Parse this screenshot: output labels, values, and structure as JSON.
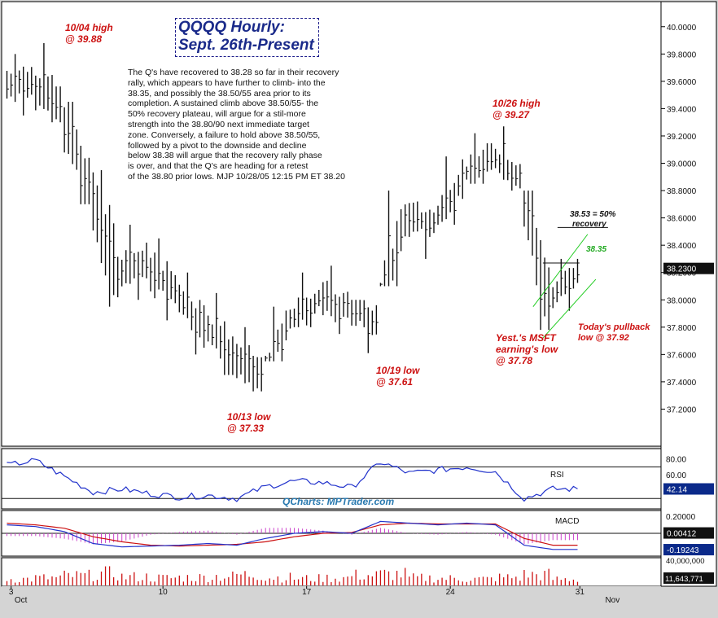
{
  "chart_data": [
    {
      "type": "bar",
      "subtype": "ohlc-hourly",
      "title": "QQQQ Hourly:",
      "subtitle": "Sept. 26th-Present",
      "ylim": [
        37.0,
        40.1
      ],
      "ytick_labels": [
        "40.0000",
        "39.8000",
        "39.6000",
        "39.4000",
        "39.2000",
        "39.0000",
        "38.8000",
        "38.6000",
        "38.4000",
        "38.2000",
        "38.0000",
        "37.8000",
        "37.6000",
        "37.4000",
        "37.2000"
      ],
      "xtick_labels": [
        "3",
        "Oct",
        "10",
        "17",
        "24",
        "31",
        "Nov"
      ],
      "last_price_label": "38.2300",
      "series": [
        {
          "x": [
            "10/03",
            "10/04",
            "10/05",
            "10/06",
            "10/07",
            "10/10",
            "10/11",
            "10/12",
            "10/13",
            "10/14",
            "10/17",
            "10/18",
            "10/19",
            "10/20",
            "10/21",
            "10/24",
            "10/25",
            "10/26",
            "10/27",
            "10/28"
          ],
          "high": [
            39.8,
            39.88,
            39.45,
            38.95,
            38.55,
            38.45,
            38.2,
            38.05,
            37.8,
            37.95,
            38.2,
            38.25,
            38.0,
            38.8,
            38.72,
            39.05,
            39.22,
            39.27,
            38.8,
            38.3
          ],
          "low": [
            39.35,
            39.3,
            38.7,
            37.95,
            38.0,
            37.85,
            37.6,
            37.45,
            37.33,
            37.55,
            37.8,
            37.75,
            37.61,
            38.1,
            38.3,
            38.55,
            38.85,
            38.8,
            37.78,
            37.92
          ],
          "close": [
            39.6,
            39.4,
            38.8,
            38.2,
            38.25,
            38.05,
            37.8,
            37.6,
            37.45,
            37.85,
            38.0,
            37.95,
            37.85,
            38.6,
            38.55,
            38.9,
            39.05,
            38.9,
            37.95,
            38.23
          ]
        }
      ],
      "grid": false,
      "legend": "none"
    },
    {
      "type": "line",
      "name": "RSI",
      "ytick_labels": [
        "80.00",
        "60.00",
        "40.00"
      ],
      "last_value_label": "42.14",
      "series": [
        {
          "name": "RSI",
          "x": [
            "10/03",
            "10/04",
            "10/05",
            "10/06",
            "10/07",
            "10/10",
            "10/11",
            "10/12",
            "10/13",
            "10/14",
            "10/17",
            "10/18",
            "10/19",
            "10/20",
            "10/21",
            "10/24",
            "10/25",
            "10/26",
            "10/27",
            "10/28"
          ],
          "values": [
            72,
            78,
            58,
            38,
            42,
            36,
            32,
            34,
            30,
            45,
            52,
            50,
            44,
            76,
            62,
            66,
            70,
            64,
            30,
            42
          ]
        }
      ]
    },
    {
      "type": "line",
      "name": "MACD",
      "ytick_labels": [
        "0.20000",
        "0.00412",
        "-0.19243"
      ],
      "series": [
        {
          "name": "MACD",
          "x": [
            "10/03",
            "10/04",
            "10/05",
            "10/06",
            "10/07",
            "10/10",
            "10/11",
            "10/12",
            "10/13",
            "10/14",
            "10/17",
            "10/18",
            "10/19",
            "10/20",
            "10/21",
            "10/24",
            "10/25",
            "10/26",
            "10/27",
            "10/28"
          ],
          "values": [
            0.1,
            0.08,
            0.02,
            -0.12,
            -0.16,
            -0.15,
            -0.14,
            -0.12,
            -0.14,
            -0.06,
            0.0,
            0.02,
            0.0,
            0.14,
            0.12,
            0.1,
            0.12,
            0.1,
            -0.14,
            -0.19
          ]
        },
        {
          "name": "Signal",
          "x": [
            "10/03",
            "10/04",
            "10/05",
            "10/06",
            "10/07",
            "10/10",
            "10/11",
            "10/12",
            "10/13",
            "10/14",
            "10/17",
            "10/18",
            "10/19",
            "10/20",
            "10/21",
            "10/24",
            "10/25",
            "10/26",
            "10/27",
            "10/28"
          ],
          "values": [
            0.12,
            0.1,
            0.06,
            -0.04,
            -0.1,
            -0.14,
            -0.15,
            -0.14,
            -0.13,
            -0.1,
            -0.04,
            0.0,
            0.01,
            0.1,
            0.12,
            0.11,
            0.11,
            0.11,
            -0.06,
            -0.14
          ]
        }
      ]
    },
    {
      "type": "bar",
      "name": "Volume",
      "ytick_labels": [
        "40,000,000",
        "11,643,771"
      ],
      "x": [
        "10/03",
        "10/04",
        "10/05",
        "10/06",
        "10/07",
        "10/10",
        "10/11",
        "10/12",
        "10/13",
        "10/14",
        "10/17",
        "10/18",
        "10/19",
        "10/20",
        "10/21",
        "10/24",
        "10/25",
        "10/26",
        "10/27",
        "10/28"
      ],
      "values": [
        12000000,
        14000000,
        18000000,
        22000000,
        16000000,
        14000000,
        15000000,
        17000000,
        20000000,
        15000000,
        13000000,
        14000000,
        19000000,
        21000000,
        14000000,
        13000000,
        12000000,
        15000000,
        20000000,
        11643771
      ]
    }
  ],
  "labels": {
    "title1": "QQQQ Hourly:",
    "title2": "Sept. 26th-Present",
    "watermark": "QCharts: MPTrader.com",
    "comment": [
      "The Q's have recovered to 38.28 so far in their recovery",
      "rally, which appears to have further to climb- into the",
      "38.35, and possibly the 38.50/55 area prior to its",
      "completion. A sustained climb above 38.50/55- the",
      "50% recovery plateau, will argue for a stil-more",
      "strength into the 38.80/90 next immediate target",
      "zone. Conversely, a failure to hold above 38.50/55,",
      "followed by a pivot to the downside and decline",
      "below 38.38 will argue that the recovery rally phase",
      "is over, and that the Q's are heading for a retest",
      "of the 38.80 prior lows. MJP 10/28/05 12:15 PM ET 38.20"
    ],
    "ann_1004_a": "10/04 high",
    "ann_1004_b": "@ 39.88",
    "ann_1026_a": "10/26 high",
    "ann_1026_b": "@ 39.27",
    "ann_1013_a": "10/13 low",
    "ann_1013_b": "@ 37.33",
    "ann_1019_a": "10/19 low",
    "ann_1019_b": "@ 37.61",
    "ann_msft_a": "Yest.'s MSFT",
    "ann_msft_b": "earning's low",
    "ann_msft_c": "@ 37.78",
    "ann_pull_a": "Today's pullback",
    "ann_pull_b": "low @ 37.92",
    "ann_50_a": "38.53 = 50%",
    "ann_50_b": "recovery",
    "ann_3835": "38.35",
    "rsi_label": "RSI",
    "macd_label": "MACD"
  },
  "colors": {
    "price_bars": "#111111",
    "annotation_red": "#cc1111",
    "rsi_line": "#2233cc",
    "macd_line": "#2233cc",
    "signal_line": "#cc1111",
    "histogram": "#cc44cc",
    "volume": "#cc1111",
    "channel": "#22cc22",
    "value_box": "#0b2a8a"
  }
}
